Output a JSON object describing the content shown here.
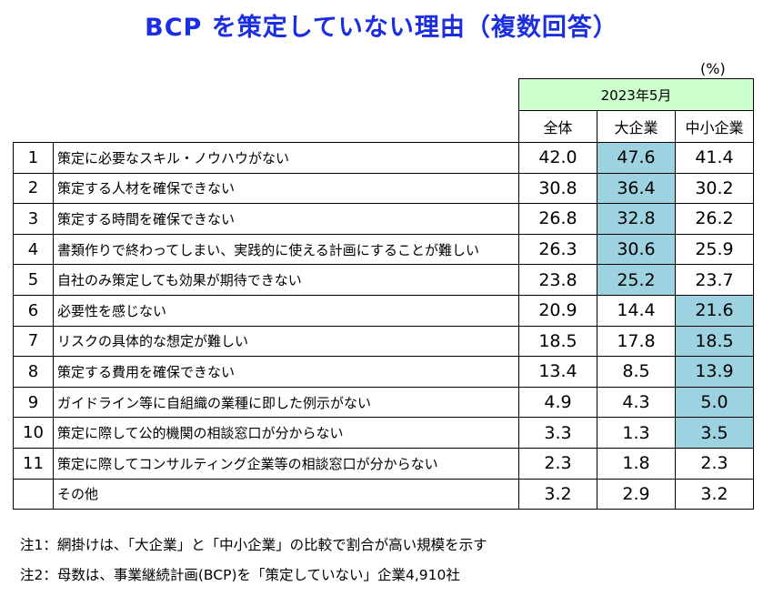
{
  "title": "BCP を策定していない理由（複数回答）",
  "unit": "(%)",
  "period": "2023年5月",
  "notes": [
    "注1：網掛けは、「大企業」と「中小企業」の比較で割合が高い規模を示す",
    "注2：母数は、事業継続計画(BCP)を「策定していない」企業4,910社"
  ],
  "highlight_color": "#9dd3e0",
  "period_color": "#ccffcc",
  "title_color": "#1c2fe0",
  "chart_data": {
    "type": "table",
    "title": "BCP を策定していない理由（複数回答）",
    "columns": [
      "全体",
      "大企業",
      "中小企業"
    ],
    "rows": [
      {
        "rank": "1",
        "label": "策定に必要なスキル・ノウハウがない",
        "values": [
          "42.0",
          "47.6",
          "41.4"
        ],
        "highlight": 1
      },
      {
        "rank": "2",
        "label": "策定する人材を確保できない",
        "values": [
          "30.8",
          "36.4",
          "30.2"
        ],
        "highlight": 1
      },
      {
        "rank": "3",
        "label": "策定する時間を確保できない",
        "values": [
          "26.8",
          "32.8",
          "26.2"
        ],
        "highlight": 1
      },
      {
        "rank": "4",
        "label": "書類作りで終わってしまい、実践的に使える計画にすることが難しい",
        "values": [
          "26.3",
          "30.6",
          "25.9"
        ],
        "highlight": 1
      },
      {
        "rank": "5",
        "label": "自社のみ策定しても効果が期待できない",
        "values": [
          "23.8",
          "25.2",
          "23.7"
        ],
        "highlight": 1
      },
      {
        "rank": "6",
        "label": "必要性を感じない",
        "values": [
          "20.9",
          "14.4",
          "21.6"
        ],
        "highlight": 2
      },
      {
        "rank": "7",
        "label": "リスクの具体的な想定が難しい",
        "values": [
          "18.5",
          "17.8",
          "18.5"
        ],
        "highlight": 2
      },
      {
        "rank": "8",
        "label": "策定する費用を確保できない",
        "values": [
          "13.4",
          "8.5",
          "13.9"
        ],
        "highlight": 2
      },
      {
        "rank": "9",
        "label": "ガイドライン等に自組織の業種に即した例示がない",
        "values": [
          "4.9",
          "4.3",
          "5.0"
        ],
        "highlight": 2
      },
      {
        "rank": "10",
        "label": "策定に際して公的機関の相談窓口が分からない",
        "values": [
          "3.3",
          "1.3",
          "3.5"
        ],
        "highlight": 2
      },
      {
        "rank": "11",
        "label": "策定に際してコンサルティング企業等の相談窓口が分からない",
        "values": [
          "2.3",
          "1.8",
          "2.3"
        ],
        "highlight": -1
      },
      {
        "rank": "",
        "label": "その他",
        "values": [
          "3.2",
          "2.9",
          "3.2"
        ],
        "highlight": -1
      }
    ]
  }
}
